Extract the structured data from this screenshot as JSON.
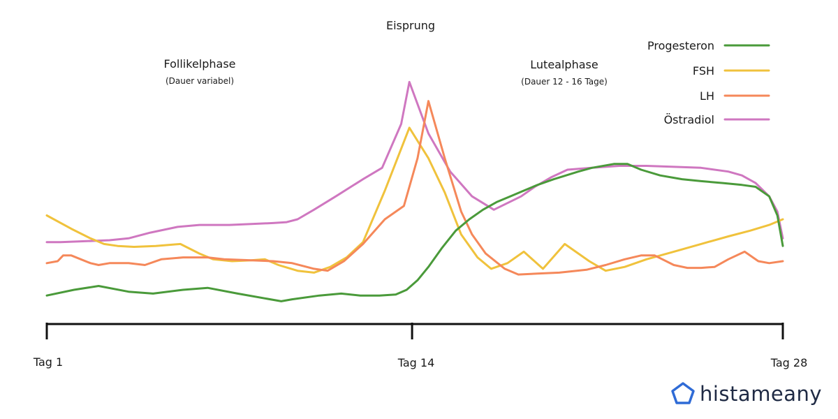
{
  "chart_data": {
    "type": "line",
    "title": "",
    "xlabel": "",
    "ylabel": "",
    "xlim": [
      1,
      28
    ],
    "ylim": [
      0,
      100
    ],
    "grid": false,
    "legend_position": "top-right",
    "x_ticks": [
      {
        "x": 1,
        "label": "Tag 1"
      },
      {
        "x": 14.4,
        "label": "Tag 14"
      },
      {
        "x": 28,
        "label": "Tag 28"
      }
    ],
    "annotations": [
      {
        "key": "follikel",
        "main": "Follikelphase",
        "sub": "(Dauer variabel)"
      },
      {
        "key": "eisprung",
        "main": "Eisprung"
      },
      {
        "key": "luteal",
        "main": "Lutealphase",
        "sub": "(Dauer 12 - 16 Tage)"
      }
    ],
    "series": [
      {
        "name": "Progesteron",
        "color": "#4a9a3a",
        "points": [
          [
            1,
            8
          ],
          [
            2,
            11
          ],
          [
            2.9,
            13
          ],
          [
            4,
            10
          ],
          [
            4.9,
            9
          ],
          [
            6,
            11
          ],
          [
            6.9,
            12
          ],
          [
            8,
            9
          ],
          [
            9.6,
            5
          ],
          [
            10,
            6
          ],
          [
            11,
            8
          ],
          [
            11.8,
            9
          ],
          [
            12.5,
            8
          ],
          [
            13.2,
            8
          ],
          [
            13.8,
            8.5
          ],
          [
            14.2,
            11
          ],
          [
            14.6,
            16
          ],
          [
            15,
            23
          ],
          [
            15.5,
            33
          ],
          [
            16,
            42
          ],
          [
            16.5,
            48
          ],
          [
            17,
            53
          ],
          [
            17.5,
            57
          ],
          [
            18,
            60
          ],
          [
            18.5,
            63
          ],
          [
            19,
            66
          ],
          [
            19.6,
            69
          ],
          [
            20.5,
            73
          ],
          [
            21,
            75
          ],
          [
            21.8,
            77
          ],
          [
            22.3,
            77
          ],
          [
            22.8,
            74
          ],
          [
            23.5,
            71
          ],
          [
            24.3,
            69
          ],
          [
            25,
            68
          ],
          [
            25.8,
            67
          ],
          [
            26.5,
            66
          ],
          [
            27,
            65
          ],
          [
            27.5,
            60
          ],
          [
            27.8,
            50
          ],
          [
            28,
            34
          ]
        ]
      },
      {
        "name": "FSH",
        "color": "#f0c23c",
        "points": [
          [
            1,
            50
          ],
          [
            1.9,
            43
          ],
          [
            2.6,
            38
          ],
          [
            3.1,
            35
          ],
          [
            3.6,
            34
          ],
          [
            4.2,
            33.5
          ],
          [
            5,
            34
          ],
          [
            5.9,
            35
          ],
          [
            6.6,
            30
          ],
          [
            7.1,
            27
          ],
          [
            7.8,
            26
          ],
          [
            8.5,
            26.5
          ],
          [
            9,
            27
          ],
          [
            9.5,
            24
          ],
          [
            10.2,
            21
          ],
          [
            10.8,
            20
          ],
          [
            11.4,
            23
          ],
          [
            12,
            28
          ],
          [
            12.6,
            36
          ],
          [
            13.4,
            63
          ],
          [
            14.3,
            96
          ],
          [
            15,
            80
          ],
          [
            15.6,
            62
          ],
          [
            16.2,
            40
          ],
          [
            16.8,
            28
          ],
          [
            17.3,
            22
          ],
          [
            17.9,
            25
          ],
          [
            18.5,
            31
          ],
          [
            19.2,
            22
          ],
          [
            20,
            35
          ],
          [
            20.9,
            26
          ],
          [
            21.5,
            21
          ],
          [
            22.2,
            23
          ],
          [
            23,
            27
          ],
          [
            24,
            31
          ],
          [
            25,
            35
          ],
          [
            26,
            39
          ],
          [
            26.8,
            42
          ],
          [
            27.5,
            45
          ],
          [
            28,
            48
          ]
        ]
      },
      {
        "name": "LH",
        "color": "#f5885a",
        "points": [
          [
            1,
            25
          ],
          [
            1.4,
            26
          ],
          [
            1.6,
            29
          ],
          [
            1.9,
            29
          ],
          [
            2.6,
            25
          ],
          [
            2.9,
            24
          ],
          [
            3.3,
            25
          ],
          [
            4,
            25
          ],
          [
            4.6,
            24
          ],
          [
            5.2,
            27
          ],
          [
            6,
            28
          ],
          [
            6.9,
            28
          ],
          [
            7.5,
            27
          ],
          [
            8.5,
            26.5
          ],
          [
            9.3,
            26
          ],
          [
            10,
            25
          ],
          [
            10.8,
            22
          ],
          [
            11.3,
            21
          ],
          [
            11.9,
            26
          ],
          [
            12.6,
            35
          ],
          [
            13.4,
            48
          ],
          [
            14.1,
            55
          ],
          [
            14.6,
            80
          ],
          [
            15.0,
            110
          ],
          [
            15.6,
            80
          ],
          [
            16.2,
            52
          ],
          [
            16.6,
            40
          ],
          [
            17.1,
            30
          ],
          [
            17.8,
            22
          ],
          [
            18.3,
            19
          ],
          [
            19,
            19.5
          ],
          [
            19.8,
            20
          ],
          [
            20.8,
            21.5
          ],
          [
            21.5,
            24
          ],
          [
            22.2,
            27
          ],
          [
            22.8,
            29
          ],
          [
            23.3,
            29
          ],
          [
            24,
            24
          ],
          [
            24.5,
            22.5
          ],
          [
            25,
            22.5
          ],
          [
            25.5,
            23
          ],
          [
            26,
            27
          ],
          [
            26.6,
            31
          ],
          [
            27.1,
            26
          ],
          [
            27.5,
            25
          ],
          [
            28,
            26
          ]
        ]
      },
      {
        "name": "Östradiol",
        "color": "#cf77c0",
        "points": [
          [
            1,
            36
          ],
          [
            1.5,
            36
          ],
          [
            2.4,
            36.5
          ],
          [
            3.3,
            37
          ],
          [
            4,
            38
          ],
          [
            4.8,
            41
          ],
          [
            5.8,
            44
          ],
          [
            6.6,
            45
          ],
          [
            7.7,
            45
          ],
          [
            8.5,
            45.5
          ],
          [
            9.3,
            46
          ],
          [
            9.8,
            46.5
          ],
          [
            10.2,
            48
          ],
          [
            10.8,
            53
          ],
          [
            11.6,
            60
          ],
          [
            12.6,
            69
          ],
          [
            13.3,
            75
          ],
          [
            14.0,
            98
          ],
          [
            14.3,
            120
          ],
          [
            15,
            93
          ],
          [
            15.8,
            73
          ],
          [
            16.6,
            60
          ],
          [
            17.4,
            53
          ],
          [
            18.4,
            60
          ],
          [
            18.9,
            65
          ],
          [
            19.5,
            70
          ],
          [
            20.1,
            74
          ],
          [
            21,
            75
          ],
          [
            22,
            76
          ],
          [
            23,
            76
          ],
          [
            24,
            75.5
          ],
          [
            25,
            75
          ],
          [
            26,
            73
          ],
          [
            26.5,
            71
          ],
          [
            27,
            67
          ],
          [
            27.5,
            60
          ],
          [
            27.8,
            52
          ],
          [
            28,
            38
          ]
        ]
      }
    ]
  },
  "logo": {
    "text": "histameany"
  }
}
